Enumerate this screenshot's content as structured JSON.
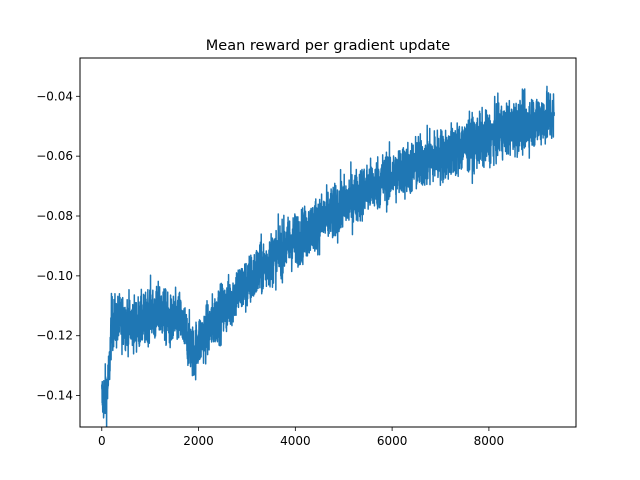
{
  "chart_data": {
    "type": "line",
    "title": "Mean reward per gradient update",
    "xlabel": "",
    "ylabel": "",
    "xlim": [
      -450,
      9800
    ],
    "ylim": [
      -0.1505,
      -0.0272
    ],
    "x_ticks": [
      0,
      2000,
      4000,
      6000,
      8000
    ],
    "x_tick_labels": [
      "0",
      "2000",
      "4000",
      "6000",
      "8000"
    ],
    "y_ticks": [
      -0.14,
      -0.12,
      -0.1,
      -0.08,
      -0.06,
      -0.04
    ],
    "y_tick_labels": [
      "−0.14",
      "−0.12",
      "−0.10",
      "−0.08",
      "−0.06",
      "−0.04"
    ],
    "grid": false,
    "legend": "none",
    "series": [
      {
        "color": "#1f77b4",
        "noise": 0.0045,
        "x": [
          0,
          100,
          150,
          200,
          400,
          700,
          900,
          1000,
          1100,
          1200,
          1400,
          1600,
          1800,
          1900,
          2000,
          2200,
          2400,
          2600,
          2800,
          3000,
          3200,
          3400,
          3600,
          3800,
          4000,
          4200,
          4400,
          4600,
          4800,
          5000,
          5200,
          5400,
          5600,
          5800,
          6000,
          6200,
          6400,
          6600,
          6800,
          7000,
          7200,
          7400,
          7600,
          7800,
          8000,
          8200,
          8400,
          8600,
          8800,
          9000,
          9200,
          9350
        ],
        "y": [
          -0.141,
          -0.139,
          -0.133,
          -0.116,
          -0.115,
          -0.116,
          -0.115,
          -0.111,
          -0.114,
          -0.111,
          -0.116,
          -0.114,
          -0.122,
          -0.126,
          -0.122,
          -0.118,
          -0.113,
          -0.11,
          -0.105,
          -0.103,
          -0.099,
          -0.096,
          -0.093,
          -0.09,
          -0.088,
          -0.086,
          -0.083,
          -0.081,
          -0.079,
          -0.076,
          -0.074,
          -0.072,
          -0.07,
          -0.068,
          -0.067,
          -0.065,
          -0.064,
          -0.062,
          -0.061,
          -0.06,
          -0.059,
          -0.057,
          -0.056,
          -0.055,
          -0.054,
          -0.052,
          -0.051,
          -0.05,
          -0.049,
          -0.048,
          -0.047,
          -0.047
        ]
      }
    ]
  }
}
